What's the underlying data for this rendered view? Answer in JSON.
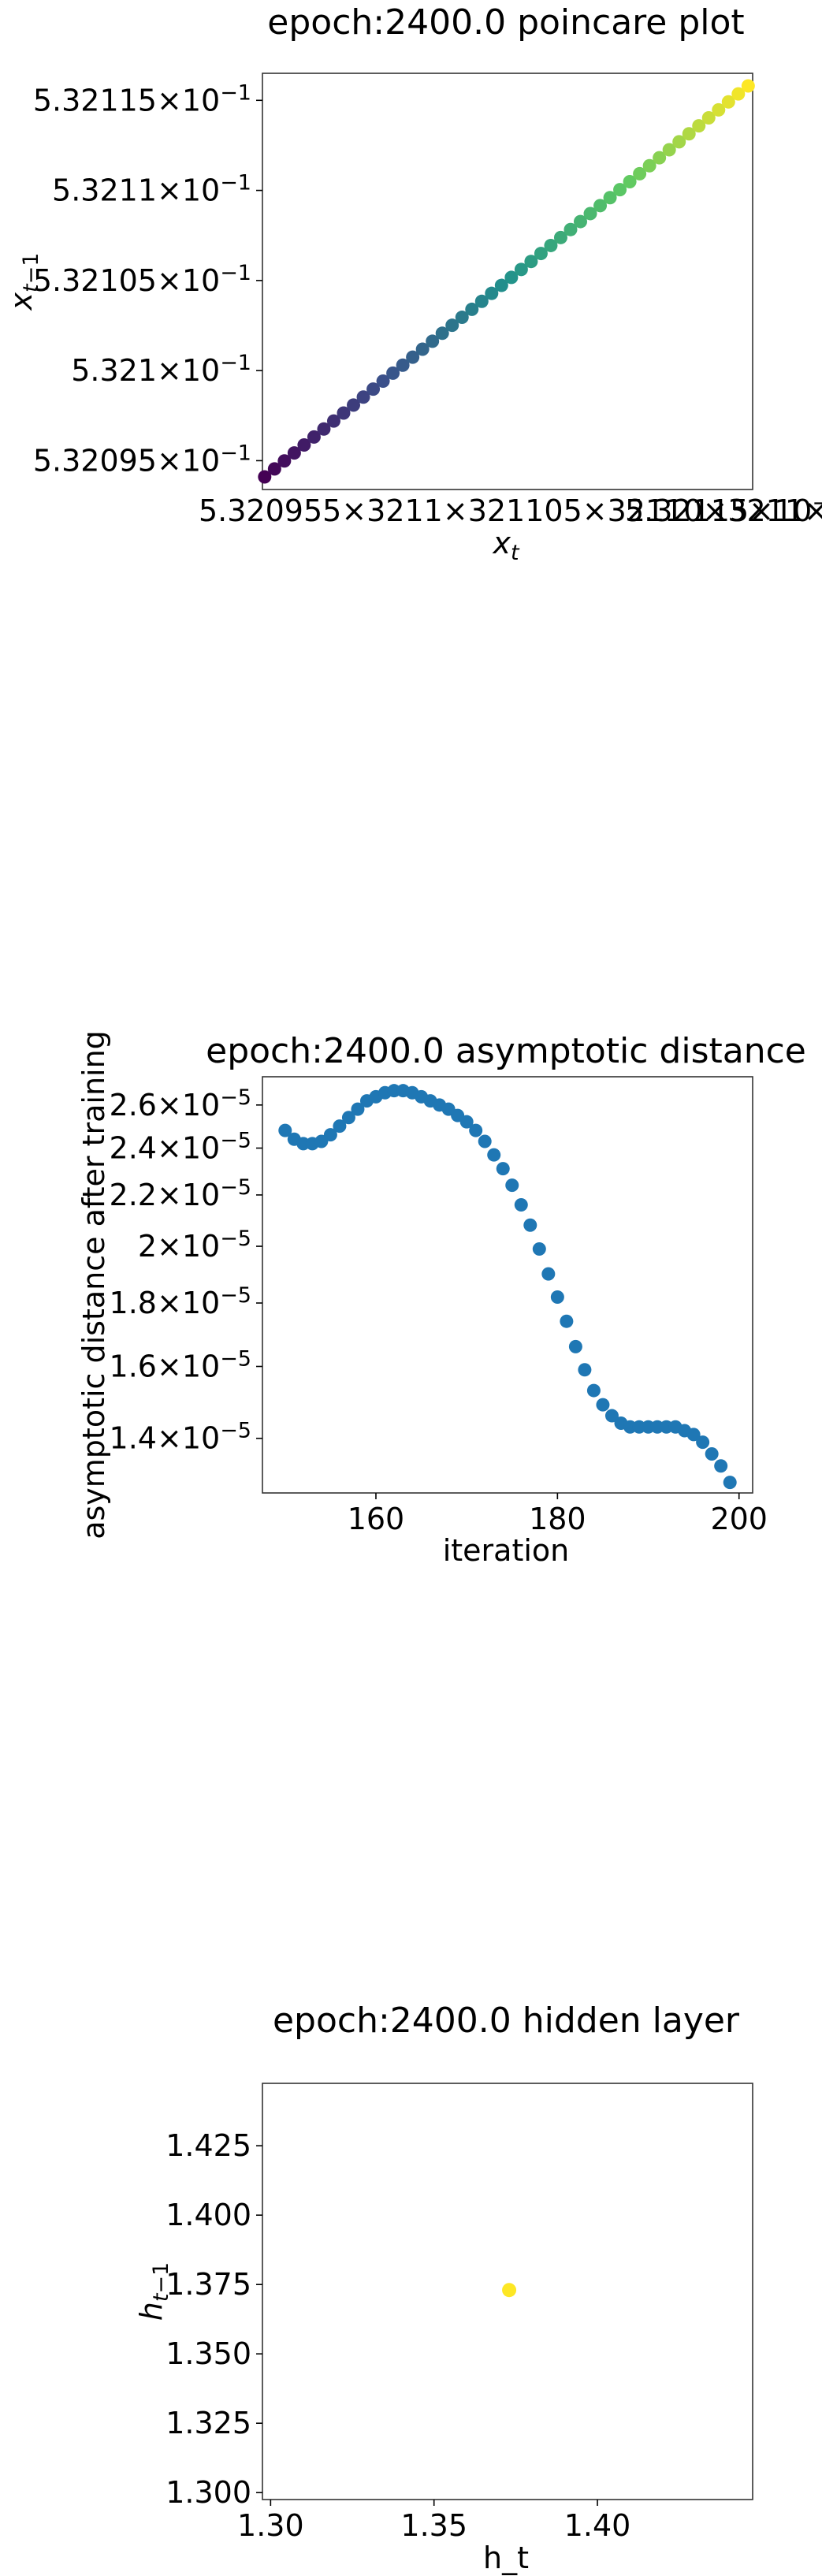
{
  "chart_data": [
    {
      "type": "scatter",
      "title": "epoch:2400.0 poincare plot",
      "xlabel": "x_t",
      "ylabel": "x_{t-1}",
      "x_scale": "log",
      "y_scale": "log",
      "colormap": "viridis",
      "xlim": [
        0.532094,
        0.532116
      ],
      "ylim": [
        0.5320934,
        0.5321165
      ],
      "ytick_labels": [
        {
          "value": 0.532095,
          "mantissa": "5.32095",
          "exp": "−1"
        },
        {
          "value": 0.5321,
          "mantissa": "5.321",
          "exp": "−1"
        },
        {
          "value": 0.532105,
          "mantissa": "5.32105",
          "exp": "−1"
        },
        {
          "value": 0.53211,
          "mantissa": "5.3211",
          "exp": "−1"
        },
        {
          "value": 0.532115,
          "mantissa": "5.32115",
          "exp": "−1"
        }
      ],
      "xtick_overlap_text": "5.320955×3211×321105×32110×3211×15×10",
      "xtick_overlap_exp": "−1",
      "xtick_right_text": "5.32115×10",
      "points": {
        "x_start": 0.5320941,
        "x_end": 0.5321158,
        "count": 50
      }
    },
    {
      "type": "scatter",
      "title": "epoch:2400.0 asymptotic distance",
      "xlabel": "iteration",
      "ylabel": "asymptotic distance after training",
      "y_scale": "log",
      "xlim": [
        147.5,
        201.5
      ],
      "ylim": [
        1.265e-05,
        2.74e-05
      ],
      "color": "#1f77b4",
      "xticks": [
        160,
        180,
        200
      ],
      "ytick_labels": [
        {
          "value": 1.4e-05,
          "mantissa": "1.4",
          "exp": "−5"
        },
        {
          "value": 1.6e-05,
          "mantissa": "1.6",
          "exp": "−5"
        },
        {
          "value": 1.8e-05,
          "mantissa": "1.8",
          "exp": "−5"
        },
        {
          "value": 2e-05,
          "mantissa": "2",
          "exp": "−5"
        },
        {
          "value": 2.2e-05,
          "mantissa": "2.2",
          "exp": "−5"
        },
        {
          "value": 2.4e-05,
          "mantissa": "2.4",
          "exp": "−5"
        },
        {
          "value": 2.6e-05,
          "mantissa": "2.6",
          "exp": "−5"
        }
      ],
      "x": [
        150,
        151,
        152,
        153,
        154,
        155,
        156,
        157,
        158,
        159,
        160,
        161,
        162,
        163,
        164,
        165,
        166,
        167,
        168,
        169,
        170,
        171,
        172,
        173,
        174,
        175,
        176,
        177,
        178,
        179,
        180,
        181,
        182,
        183,
        184,
        185,
        186,
        187,
        188,
        189,
        190,
        191,
        192,
        193,
        194,
        195,
        196,
        197,
        198,
        199
      ],
      "y": [
        2.48e-05,
        2.44e-05,
        2.42e-05,
        2.42e-05,
        2.43e-05,
        2.46e-05,
        2.5e-05,
        2.54e-05,
        2.58e-05,
        2.62e-05,
        2.64e-05,
        2.66e-05,
        2.67e-05,
        2.67e-05,
        2.66e-05,
        2.64e-05,
        2.62e-05,
        2.6e-05,
        2.58e-05,
        2.55e-05,
        2.52e-05,
        2.48e-05,
        2.43e-05,
        2.37e-05,
        2.31e-05,
        2.24e-05,
        2.16e-05,
        2.08e-05,
        1.99e-05,
        1.9e-05,
        1.82e-05,
        1.74e-05,
        1.66e-05,
        1.59e-05,
        1.53e-05,
        1.49e-05,
        1.46e-05,
        1.44e-05,
        1.43e-05,
        1.43e-05,
        1.43e-05,
        1.43e-05,
        1.43e-05,
        1.43e-05,
        1.42e-05,
        1.41e-05,
        1.39e-05,
        1.36e-05,
        1.33e-05,
        1.29e-05
      ]
    },
    {
      "type": "scatter",
      "title": "epoch:2400.0 hidden layer",
      "xlabel": "h_t",
      "ylabel": "h_{t-1}",
      "xlim": [
        1.2975,
        1.4475
      ],
      "ylim": [
        1.2975,
        1.4475
      ],
      "xticks": [
        "1.30",
        "1.35",
        "1.40"
      ],
      "yticks": [
        "1.300",
        "1.325",
        "1.350",
        "1.375",
        "1.400",
        "1.425"
      ],
      "color": "#fde725",
      "x": [
        1.373
      ],
      "y": [
        1.373
      ]
    }
  ]
}
